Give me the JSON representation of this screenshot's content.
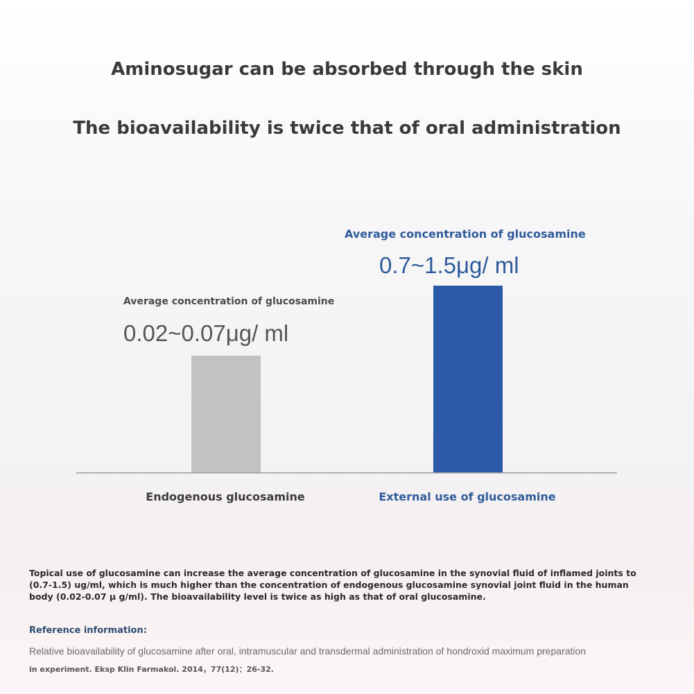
{
  "header": {
    "line1": "Aminosugar can be absorbed through the skin",
    "line2": "The bioavailability is twice that of oral administration"
  },
  "bars": [
    {
      "caption": "Average concentration of glucosamine",
      "value_text": "0.02~0.07μg/ ml",
      "category": "Endogenous glucosamine"
    },
    {
      "caption": "Average concentration of glucosamine",
      "value_text": "0.7~1.5μg/ ml",
      "category": "External use of glucosamine"
    }
  ],
  "summary": "Topical use of glucosamine can increase the average concentration of glucosamine in the synovial fluid of inflamed joints to (0.7-1.5) ug/ml, which is much higher than the concentration of endogenous glucosamine synovial joint fluid in the human body (0.02-0.07 μ g/ml). The bioavailability level is twice as high as that of oral glucosamine.",
  "reference": {
    "heading": "Reference information:",
    "line1": "Relative bioavailability of glucosamine after oral, intramuscular and transdermal administration of hondroxid maximum preparation",
    "line2": "in experiment. Eksp Klin Farmakol. 2014，77(12)：26-32."
  }
}
